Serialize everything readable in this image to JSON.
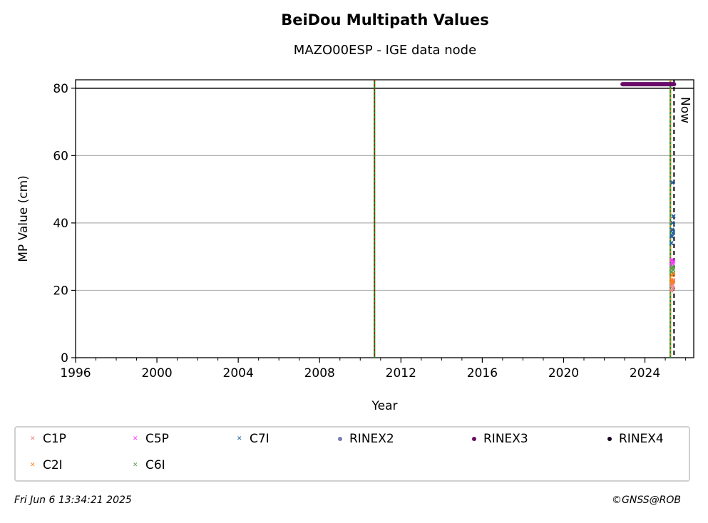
{
  "chart_data": {
    "type": "scatter",
    "title": "BeiDou Multipath Values",
    "subtitle": "MAZO00ESP - IGE data node",
    "xlabel": "Year",
    "ylabel": "MP Value (cm)",
    "xlim": [
      1996,
      2026.4
    ],
    "ylim": [
      0,
      82.5
    ],
    "x_ticks": [
      1996,
      2000,
      2004,
      2008,
      2012,
      2016,
      2020,
      2024
    ],
    "y_ticks": [
      0,
      20,
      40,
      60,
      80
    ],
    "grid": "horizontal",
    "now_label": "Now",
    "now_year": 2025.43,
    "reference_line_y": 80,
    "vertical_events": [
      {
        "x": 2010.7,
        "colors": [
          "#cc0000",
          "#228b22"
        ]
      },
      {
        "x": 2025.25,
        "colors": [
          "#ff7f0e",
          "#228b22"
        ]
      }
    ],
    "series": [
      {
        "name": "C1P",
        "color": "#f08080",
        "marker": "x",
        "points": [
          [
            2025.3,
            20
          ],
          [
            2025.32,
            21.5
          ],
          [
            2025.35,
            22
          ],
          [
            2025.38,
            20.5
          ],
          [
            2025.4,
            23
          ]
        ]
      },
      {
        "name": "C2I",
        "color": "#ff7f0e",
        "marker": "x",
        "points": [
          [
            2025.3,
            23
          ],
          [
            2025.33,
            24.5
          ],
          [
            2025.36,
            22.5
          ],
          [
            2025.39,
            25
          ]
        ]
      },
      {
        "name": "C5P",
        "color": "#ff33ff",
        "marker": "x",
        "points": [
          [
            2025.3,
            27.5
          ],
          [
            2025.33,
            29
          ],
          [
            2025.36,
            28
          ],
          [
            2025.39,
            28.5
          ]
        ]
      },
      {
        "name": "C6I",
        "color": "#5a9e4b",
        "marker": "x",
        "points": [
          [
            2025.3,
            25.5
          ],
          [
            2025.33,
            26.5
          ],
          [
            2025.36,
            27
          ],
          [
            2025.39,
            26
          ]
        ]
      },
      {
        "name": "C7I",
        "color": "#1f5fa0",
        "marker": "x",
        "points": [
          [
            2025.3,
            34
          ],
          [
            2025.32,
            36
          ],
          [
            2025.34,
            38
          ],
          [
            2025.36,
            40
          ],
          [
            2025.38,
            37
          ],
          [
            2025.4,
            42
          ],
          [
            2025.35,
            52
          ]
        ]
      },
      {
        "name": "RINEX2",
        "color": "#7b7bb8",
        "marker": "dot",
        "points": []
      },
      {
        "name": "RINEX3",
        "color": "#6a0a6a",
        "marker": "dot",
        "line": {
          "x0": 2022.9,
          "x1": 2025.43,
          "y": 81.2
        }
      },
      {
        "name": "RINEX4",
        "color": "#1a0020",
        "marker": "dot",
        "points": []
      }
    ]
  },
  "footer": {
    "timestamp": "Fri Jun  6 13:34:21 2025",
    "credit": "©GNSS@ROB"
  }
}
